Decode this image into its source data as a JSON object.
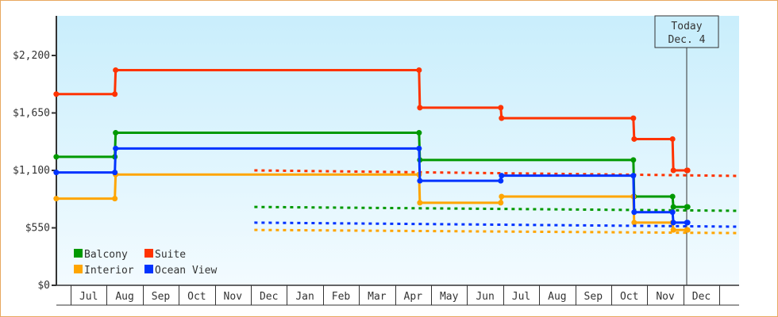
{
  "chart_data": {
    "type": "line",
    "step": true,
    "title": "",
    "xlabel": "",
    "ylabel": "",
    "ylim": [
      0,
      2200
    ],
    "y_ticks": [
      "$0",
      "$550",
      "$1,100",
      "$1,650",
      "$2,200"
    ],
    "y_tick_values": [
      0,
      550,
      1100,
      1650,
      2200
    ],
    "x_range": [
      "Jun 19",
      "Jan 17"
    ],
    "x_ticks": [
      "Jul",
      "Aug",
      "Sep",
      "Oct",
      "Nov",
      "Dec",
      "Jan",
      "Feb",
      "Mar",
      "Apr",
      "May",
      "Jun",
      "Jul",
      "Aug",
      "Sep",
      "Oct",
      "Nov",
      "Dec"
    ],
    "grid": false,
    "legend": "bottom-left",
    "today_marker": {
      "line1": "Today",
      "line2": "Dec. 4",
      "date": "Dec 4"
    },
    "series": [
      {
        "name": "Balcony",
        "color": "#009900",
        "points": [
          [
            "Jun 19",
            1230
          ],
          [
            "Aug 8",
            1460
          ],
          [
            "Apr 21",
            1200
          ],
          [
            "Oct 20",
            850
          ],
          [
            "Nov 22",
            750
          ],
          [
            "Dec 4",
            750
          ]
        ],
        "projection": [
          [
            "Dec 4",
            750
          ],
          [
            "Jan 17",
            713
          ]
        ]
      },
      {
        "name": "Suite",
        "color": "#ff3300",
        "points": [
          [
            "Jun 19",
            1830
          ],
          [
            "Aug 8",
            2060
          ],
          [
            "Apr 21",
            1700
          ],
          [
            "Jun 29",
            1600
          ],
          [
            "Oct 20",
            1400
          ],
          [
            "Nov 22",
            1100
          ],
          [
            "Dec 4",
            1100
          ]
        ],
        "projection": [
          [
            "Dec 4",
            1100
          ],
          [
            "Jan 17",
            1047
          ]
        ]
      },
      {
        "name": "Interior",
        "color": "#ffa500",
        "points": [
          [
            "Jun 19",
            830
          ],
          [
            "Aug 8",
            1060
          ],
          [
            "Apr 21",
            790
          ],
          [
            "Jun 29",
            850
          ],
          [
            "Oct 20",
            600
          ],
          [
            "Nov 22",
            530
          ],
          [
            "Dec 4",
            530
          ]
        ],
        "projection": [
          [
            "Dec 4",
            530
          ],
          [
            "Jan 17",
            500
          ]
        ]
      },
      {
        "name": "Ocean View",
        "color": "#0033ff",
        "points": [
          [
            "Jun 19",
            1080
          ],
          [
            "Aug 8",
            1310
          ],
          [
            "Apr 21",
            1000
          ],
          [
            "Jun 29",
            1050
          ],
          [
            "Oct 20",
            700
          ],
          [
            "Nov 22",
            600
          ],
          [
            "Dec 4",
            600
          ]
        ],
        "projection": [
          [
            "Dec 4",
            600
          ],
          [
            "Jan 17",
            561
          ]
        ]
      }
    ]
  }
}
